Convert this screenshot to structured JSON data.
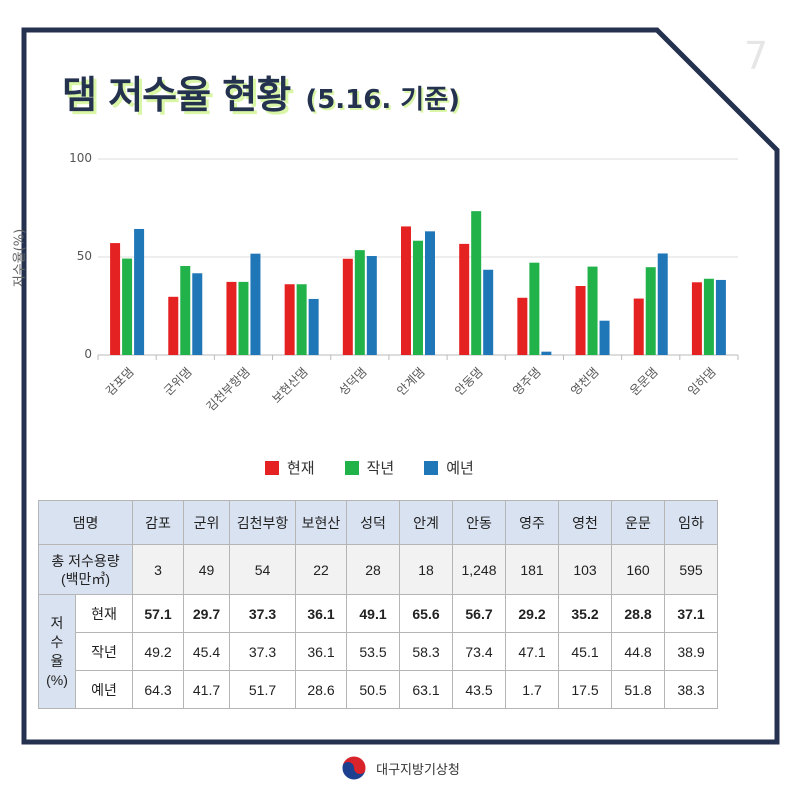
{
  "header": {
    "title": "댐 저수율 현황",
    "subtitle": "(5.16. 기준)",
    "page_number": "7"
  },
  "footer": {
    "org_name": "대구지방기상청"
  },
  "legend": [
    {
      "name": "현재",
      "color": "#e52222"
    },
    {
      "name": "작년",
      "color": "#22b24a"
    },
    {
      "name": "예년",
      "color": "#1f77b8"
    }
  ],
  "chart_data": {
    "type": "bar",
    "ylabel": "저수율(%)",
    "ylim": [
      0,
      100
    ],
    "yticks": [
      0,
      50,
      100
    ],
    "grid": true,
    "legend_position": "bottom",
    "categories": [
      "감포댐",
      "군위댐",
      "김천부항댐",
      "보현산댐",
      "성덕댐",
      "안계댐",
      "안동댐",
      "영주댐",
      "영천댐",
      "운문댐",
      "임하댐"
    ],
    "series": [
      {
        "name": "현재",
        "color": "#e52222",
        "values": [
          57.1,
          29.7,
          37.3,
          36.1,
          49.1,
          65.6,
          56.7,
          29.2,
          35.2,
          28.8,
          37.1
        ]
      },
      {
        "name": "작년",
        "color": "#22b24a",
        "values": [
          49.2,
          45.4,
          37.3,
          36.1,
          53.5,
          58.3,
          73.4,
          47.1,
          45.1,
          44.8,
          38.9
        ]
      },
      {
        "name": "예년",
        "color": "#1f77b8",
        "values": [
          64.3,
          41.7,
          51.7,
          28.6,
          50.5,
          63.1,
          43.5,
          1.7,
          17.5,
          51.8,
          38.3
        ]
      }
    ]
  },
  "table": {
    "corner_label": "댐명",
    "dams": [
      "감포",
      "군위",
      "김천부항",
      "보현산",
      "성덕",
      "안계",
      "안동",
      "영주",
      "영천",
      "운문",
      "임하"
    ],
    "capacity_label": "총 저수용량",
    "capacity_unit": "(백만㎥)",
    "capacity": [
      "3",
      "49",
      "54",
      "22",
      "28",
      "18",
      "1,248",
      "181",
      "103",
      "160",
      "595"
    ],
    "rate_label_lines": [
      "저",
      "수",
      "율",
      "(%)"
    ],
    "rows": [
      {
        "label": "현재",
        "values": [
          "57.1",
          "29.7",
          "37.3",
          "36.1",
          "49.1",
          "65.6",
          "56.7",
          "29.2",
          "35.2",
          "28.8",
          "37.1"
        ]
      },
      {
        "label": "작년",
        "values": [
          "49.2",
          "45.4",
          "37.3",
          "36.1",
          "53.5",
          "58.3",
          "73.4",
          "47.1",
          "45.1",
          "44.8",
          "38.9"
        ]
      },
      {
        "label": "예년",
        "values": [
          "64.3",
          "41.7",
          "51.7",
          "28.6",
          "50.5",
          "63.1",
          "43.5",
          "1.7",
          "17.5",
          "51.8",
          "38.3"
        ]
      }
    ]
  }
}
